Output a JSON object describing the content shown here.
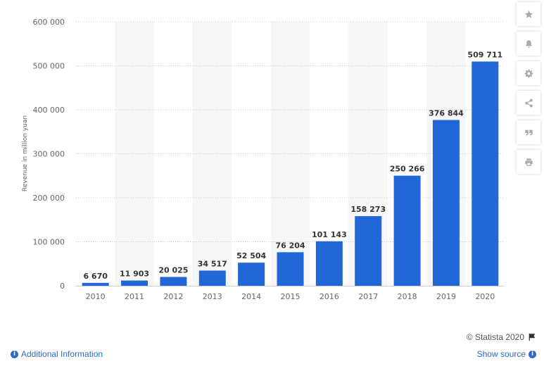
{
  "chart_data": {
    "type": "bar",
    "categories": [
      "2010",
      "2011",
      "2012",
      "2013",
      "2014",
      "2015",
      "2016",
      "2017",
      "2018",
      "2019",
      "2020"
    ],
    "values": [
      6670,
      11903,
      20025,
      34517,
      52504,
      76204,
      101143,
      158273,
      250266,
      376844,
      509711
    ],
    "value_labels": [
      "6 670",
      "11 903",
      "20 025",
      "34 517",
      "52 504",
      "76 204",
      "101 143",
      "158 273",
      "250 266",
      "376 844",
      "509 711"
    ],
    "ylabel": "Revenue in million yuan",
    "xlabel": "",
    "ylim": [
      0,
      600000
    ],
    "yticks": [
      0,
      100000,
      200000,
      300000,
      400000,
      500000,
      600000
    ],
    "ytick_labels": [
      "0",
      "100 000",
      "200 000",
      "300 000",
      "400 000",
      "500 000",
      "600 000"
    ],
    "grid": true,
    "bar_color": "#2267d8",
    "band_color": "#f6f6f6"
  },
  "toolbar": {
    "items": [
      {
        "name": "favorite",
        "icon": "star-icon"
      },
      {
        "name": "notification",
        "icon": "bell-icon"
      },
      {
        "name": "settings",
        "icon": "gear-icon"
      },
      {
        "name": "share",
        "icon": "share-icon"
      },
      {
        "name": "cite",
        "icon": "quote-icon"
      },
      {
        "name": "print",
        "icon": "print-icon"
      }
    ]
  },
  "footer": {
    "credit": "© Statista 2020",
    "credit_icon": "flag-icon",
    "additional_info": "Additional Information",
    "show_source": "Show source",
    "link_color": "#2b6bc7"
  }
}
